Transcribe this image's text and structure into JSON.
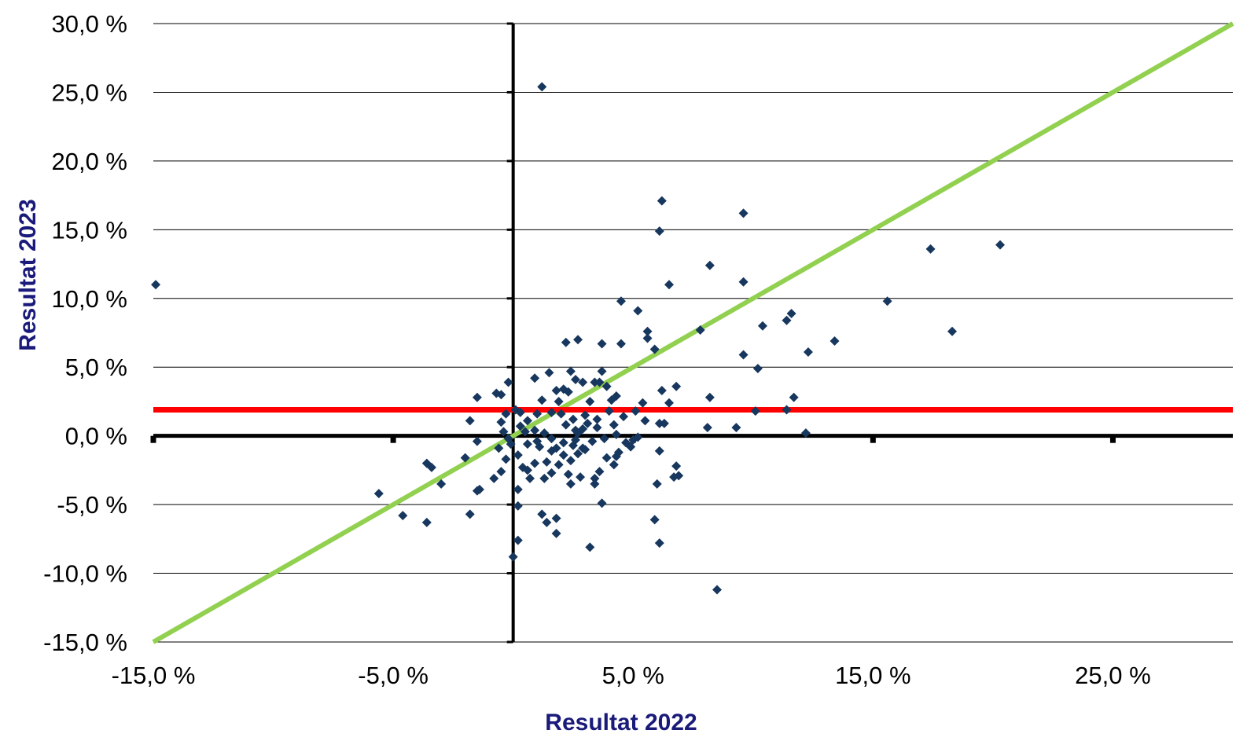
{
  "chart_data": {
    "type": "scatter",
    "title": "",
    "xlabel": "Resultat 2022",
    "ylabel": "Resultat 2023",
    "xlim": [
      -15,
      30
    ],
    "ylim": [
      -15,
      30
    ],
    "x_ticks": [
      "-15,0 %",
      "-5,0 %",
      "5,0 %",
      "15,0 %",
      "25,0 %"
    ],
    "y_ticks": [
      "30,0 %",
      "25,0 %",
      "20,0 %",
      "15,0 %",
      "10,0 %",
      "5,0 %",
      "0,0 %",
      "-5,0 %",
      "-10,0 %",
      "-15,0 %"
    ],
    "grid": true,
    "colors": {
      "points": "#17375e",
      "diagonal": "#92d050",
      "reference": "#ff0000",
      "axes": "#000000",
      "gridlines": "#000000"
    },
    "reference_lines": [
      {
        "kind": "diagonal",
        "slope": 1,
        "intercept": 0,
        "color": "#92d050"
      },
      {
        "kind": "horizontal",
        "y": 1.9,
        "color": "#ff0000"
      }
    ],
    "points": [
      [
        1.2,
        25.4
      ],
      [
        -14.9,
        11.0
      ],
      [
        6.2,
        17.1
      ],
      [
        6.1,
        14.9
      ],
      [
        9.6,
        16.2
      ],
      [
        8.2,
        12.4
      ],
      [
        9.6,
        11.2
      ],
      [
        6.5,
        11.0
      ],
      [
        17.4,
        13.6
      ],
      [
        20.3,
        13.9
      ],
      [
        15.6,
        9.8
      ],
      [
        18.3,
        7.6
      ],
      [
        13.4,
        6.9
      ],
      [
        11.6,
        8.9
      ],
      [
        11.4,
        8.4
      ],
      [
        10.4,
        8.0
      ],
      [
        7.8,
        7.7
      ],
      [
        12.3,
        6.1
      ],
      [
        9.6,
        5.9
      ],
      [
        10.2,
        4.9
      ],
      [
        4.5,
        9.8
      ],
      [
        5.2,
        9.1
      ],
      [
        5.6,
        7.6
      ],
      [
        5.6,
        7.1
      ],
      [
        5.9,
        6.3
      ],
      [
        2.2,
        6.8
      ],
      [
        2.7,
        7.0
      ],
      [
        3.7,
        6.7
      ],
      [
        4.5,
        6.7
      ],
      [
        8.2,
        2.8
      ],
      [
        11.7,
        2.8
      ],
      [
        10.1,
        1.8
      ],
      [
        11.4,
        1.9
      ],
      [
        9.3,
        0.6
      ],
      [
        8.1,
        0.6
      ],
      [
        12.2,
        0.2
      ],
      [
        6.8,
        3.6
      ],
      [
        6.2,
        3.3
      ],
      [
        6.5,
        2.4
      ],
      [
        5.4,
        2.4
      ],
      [
        6.1,
        0.9
      ],
      [
        6.3,
        0.9
      ],
      [
        6.1,
        -1.1
      ],
      [
        6.8,
        -2.2
      ],
      [
        6.9,
        -2.9
      ],
      [
        6.7,
        -3.0
      ],
      [
        6.0,
        -3.5
      ],
      [
        5.9,
        -6.1
      ],
      [
        6.1,
        -7.8
      ],
      [
        8.5,
        -11.2
      ],
      [
        3.2,
        -8.1
      ],
      [
        3.7,
        -4.9
      ],
      [
        1.2,
        -5.7
      ],
      [
        1.4,
        -6.3
      ],
      [
        1.8,
        -6.0
      ],
      [
        1.8,
        -7.1
      ],
      [
        0.2,
        -7.6
      ],
      [
        0.0,
        -8.8
      ],
      [
        0.2,
        -5.1
      ],
      [
        -5.6,
        -4.2
      ],
      [
        -4.6,
        -5.8
      ],
      [
        -3.6,
        -6.3
      ],
      [
        -1.8,
        -5.7
      ],
      [
        -1.4,
        -3.9
      ],
      [
        -1.5,
        -4.0
      ],
      [
        -3.0,
        -3.5
      ],
      [
        -3.4,
        -2.3
      ],
      [
        -3.6,
        -2.0
      ],
      [
        -2.0,
        -1.6
      ],
      [
        -1.5,
        -0.4
      ],
      [
        -1.8,
        1.1
      ],
      [
        -1.5,
        2.8
      ],
      [
        -0.7,
        3.1
      ],
      [
        -0.5,
        3.0
      ],
      [
        -0.2,
        3.9
      ],
      [
        -0.3,
        1.6
      ],
      [
        0.1,
        1.9
      ],
      [
        0.3,
        1.7
      ],
      [
        -0.5,
        1.0
      ],
      [
        0.9,
        4.2
      ],
      [
        1.5,
        4.6
      ],
      [
        2.1,
        3.4
      ],
      [
        1.8,
        3.3
      ],
      [
        1.2,
        2.6
      ],
      [
        2.4,
        4.7
      ],
      [
        2.6,
        4.1
      ],
      [
        2.9,
        3.9
      ],
      [
        3.4,
        3.9
      ],
      [
        3.7,
        4.7
      ],
      [
        3.6,
        3.9
      ],
      [
        3.9,
        3.6
      ],
      [
        2.3,
        3.2
      ],
      [
        3.2,
        2.5
      ],
      [
        4.1,
        2.6
      ],
      [
        4.3,
        2.9
      ],
      [
        4.0,
        1.8
      ],
      [
        4.6,
        1.4
      ],
      [
        5.1,
        1.8
      ],
      [
        5.5,
        1.1
      ],
      [
        4.2,
        0.8
      ],
      [
        3.5,
        0.6
      ],
      [
        2.6,
        0.4
      ],
      [
        2.0,
        1.6
      ],
      [
        1.6,
        1.7
      ],
      [
        1.0,
        1.6
      ],
      [
        0.6,
        1.1
      ],
      [
        0.3,
        0.7
      ],
      [
        0.9,
        0.4
      ],
      [
        1.3,
        0.2
      ],
      [
        1.6,
        -0.2
      ],
      [
        2.1,
        -0.5
      ],
      [
        2.6,
        -0.3
      ],
      [
        2.9,
        0.5
      ],
      [
        3.1,
        0.9
      ],
      [
        3.3,
        -0.4
      ],
      [
        3.8,
        -0.2
      ],
      [
        4.3,
        0.1
      ],
      [
        4.7,
        -0.5
      ],
      [
        5.0,
        -0.3
      ],
      [
        5.2,
        -0.1
      ],
      [
        4.9,
        -0.8
      ],
      [
        4.4,
        -1.2
      ],
      [
        4.2,
        -2.1
      ],
      [
        3.9,
        -1.6
      ],
      [
        3.6,
        -2.6
      ],
      [
        3.4,
        -3.1
      ],
      [
        3.4,
        -3.5
      ],
      [
        3.0,
        -1.0
      ],
      [
        2.7,
        -1.3
      ],
      [
        2.4,
        -1.8
      ],
      [
        2.1,
        -1.4
      ],
      [
        1.8,
        -0.9
      ],
      [
        1.6,
        -1.1
      ],
      [
        1.4,
        -1.9
      ],
      [
        1.9,
        -2.1
      ],
      [
        2.3,
        -2.8
      ],
      [
        2.8,
        -3.0
      ],
      [
        2.4,
        -3.5
      ],
      [
        1.6,
        -2.7
      ],
      [
        1.3,
        -3.1
      ],
      [
        0.9,
        -2.0
      ],
      [
        0.6,
        -2.5
      ],
      [
        0.4,
        -2.3
      ],
      [
        0.7,
        -3.1
      ],
      [
        0.2,
        -1.4
      ],
      [
        -0.1,
        -0.6
      ],
      [
        -0.6,
        -0.9
      ],
      [
        -0.3,
        -1.7
      ],
      [
        -0.5,
        -2.6
      ],
      [
        0.2,
        -3.9
      ],
      [
        -0.8,
        -3.1
      ],
      [
        -0.2,
        -0.2
      ],
      [
        0.5,
        0.3
      ],
      [
        1.0,
        -0.4
      ],
      [
        2.2,
        0.8
      ],
      [
        2.5,
        1.2
      ],
      [
        3.0,
        1.5
      ],
      [
        1.9,
        2.5
      ],
      [
        2.5,
        -0.7
      ],
      [
        2.9,
        -0.9
      ],
      [
        3.5,
        1.2
      ],
      [
        4.3,
        -1.5
      ],
      [
        1.1,
        -0.8
      ],
      [
        0.6,
        -0.6
      ],
      [
        -0.4,
        0.3
      ],
      [
        2.7,
        0.2
      ]
    ]
  }
}
